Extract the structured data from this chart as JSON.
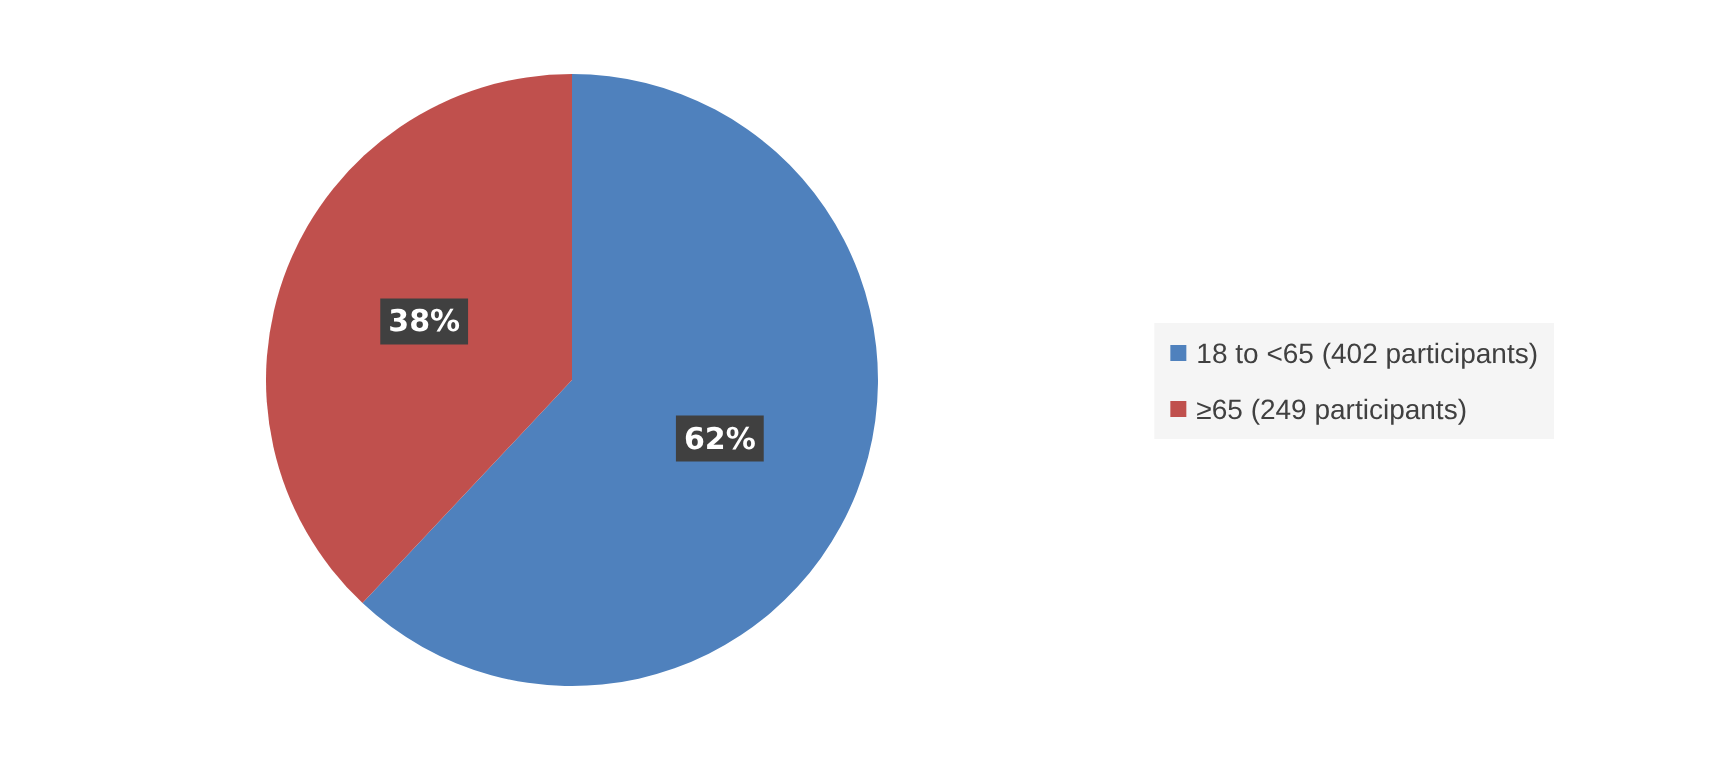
{
  "chart_data": {
    "type": "pie",
    "categories": [
      "18 to <65 (402 participants)",
      "≥65 (249 participants)"
    ],
    "values": [
      62,
      38
    ],
    "colors": [
      "#4f81bd",
      "#c0504d"
    ],
    "value_labels": [
      "62%",
      "38%"
    ],
    "legend": "right"
  }
}
